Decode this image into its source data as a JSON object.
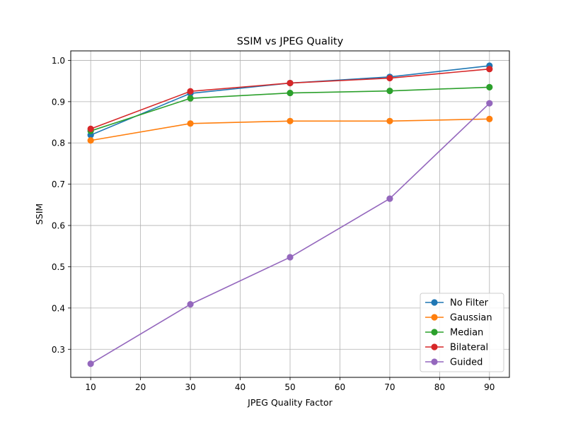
{
  "chart_data": {
    "type": "line",
    "title": "SSIM vs JPEG Quality",
    "xlabel": "JPEG Quality Factor",
    "ylabel": "SSIM",
    "x": [
      10,
      30,
      50,
      70,
      90
    ],
    "xlim": [
      6,
      94
    ],
    "ylim": [
      0.232,
      1.023
    ],
    "xticks": [
      10,
      20,
      30,
      40,
      50,
      60,
      70,
      80,
      90
    ],
    "yticks": [
      0.3,
      0.4,
      0.5,
      0.6,
      0.7,
      0.8,
      0.9,
      1.0
    ],
    "ytick_labels": [
      "0.3",
      "0.4",
      "0.5",
      "0.6",
      "0.7",
      "0.8",
      "0.9",
      "1.0"
    ],
    "grid": true,
    "legend_position": "lower-right",
    "series": [
      {
        "name": "No Filter",
        "color": "#1f77b4",
        "values": [
          0.819,
          0.92,
          0.945,
          0.96,
          0.987
        ]
      },
      {
        "name": "Gaussian",
        "color": "#ff7f0e",
        "values": [
          0.806,
          0.847,
          0.853,
          0.853,
          0.858
        ]
      },
      {
        "name": "Median",
        "color": "#2ca02c",
        "values": [
          0.829,
          0.908,
          0.921,
          0.926,
          0.935
        ]
      },
      {
        "name": "Bilateral",
        "color": "#d62728",
        "values": [
          0.834,
          0.925,
          0.945,
          0.957,
          0.979
        ]
      },
      {
        "name": "Guided",
        "color": "#9467bd",
        "values": [
          0.265,
          0.409,
          0.523,
          0.665,
          0.896
        ]
      }
    ]
  }
}
